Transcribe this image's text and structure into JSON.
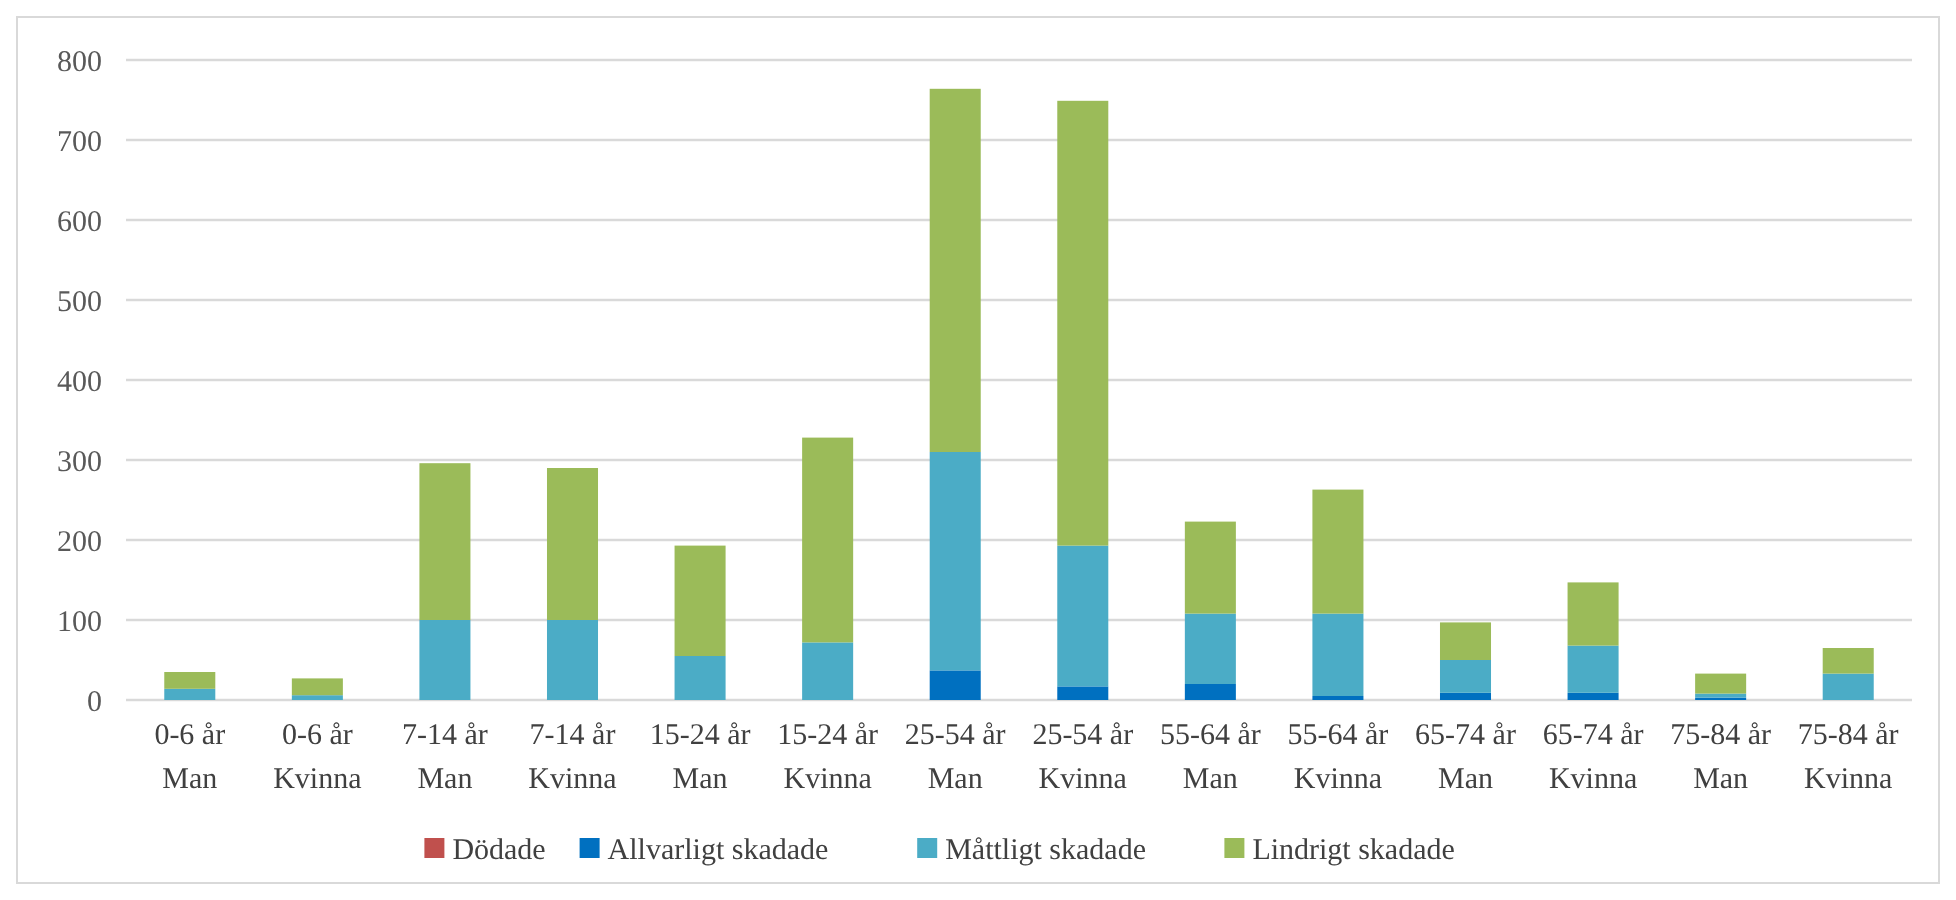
{
  "chart_data": {
    "type": "bar",
    "stacked": true,
    "categories": [
      "0-6 år Man",
      "0-6 år Kvinna",
      "7-14 år Man",
      "7-14 år Kvinna",
      "15-24 år Man",
      "15-24 år Kvinna",
      "25-54 år Man",
      "25-54 år Kvinna",
      "55-64 år Man",
      "55-64 år Kvinna",
      "65-74 år Man",
      "65-74 år Kvinna",
      "75-84 år Man",
      "75-84 år Kvinna"
    ],
    "series": [
      {
        "name": "Dödade",
        "color": "#c0504d",
        "values": [
          0,
          0,
          0,
          0,
          0,
          0,
          0,
          0,
          0,
          0,
          0,
          0,
          0,
          0
        ]
      },
      {
        "name": "Allvarligt skadade",
        "color": "#0070c0",
        "values": [
          0,
          0,
          0,
          0,
          0,
          0,
          37,
          17,
          20,
          5,
          9,
          9,
          3,
          0
        ]
      },
      {
        "name": "Måttligt skadade",
        "color": "#4bacc6",
        "values": [
          14,
          6,
          100,
          100,
          55,
          72,
          273,
          176,
          88,
          103,
          41,
          59,
          5,
          33
        ]
      },
      {
        "name": "Lindrigt skadade",
        "color": "#9bbb59",
        "values": [
          21,
          21,
          196,
          190,
          138,
          256,
          454,
          556,
          115,
          155,
          47,
          79,
          25,
          32
        ]
      }
    ],
    "ylim": [
      0,
      800
    ],
    "yticks": [
      0,
      100,
      200,
      300,
      400,
      500,
      600,
      700,
      800
    ],
    "grid": "y",
    "legend": "bottom"
  }
}
